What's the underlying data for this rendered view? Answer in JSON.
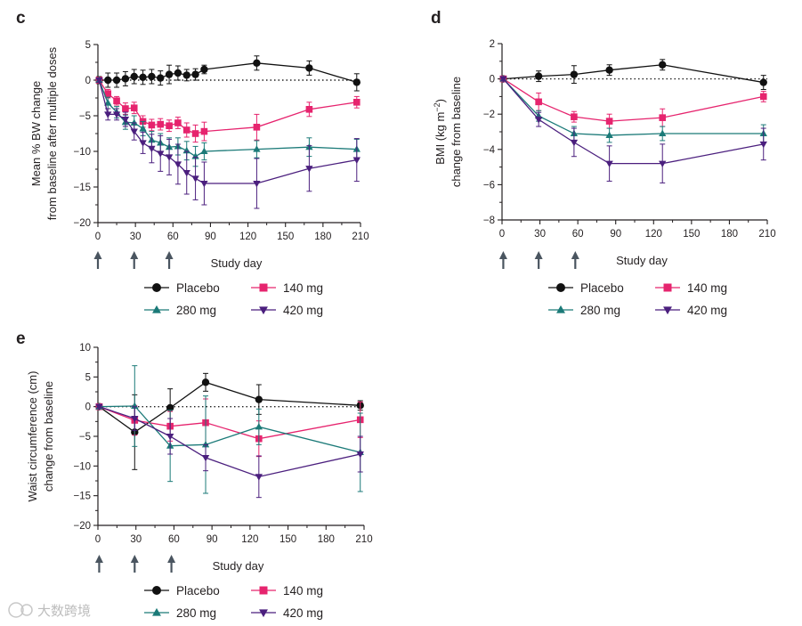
{
  "colors": {
    "placebo": "#111111",
    "mg140": "#e6246e",
    "mg280": "#1b7a78",
    "mg420": "#4b1f7e",
    "axis": "#231f20",
    "arrow": "#4a5560"
  },
  "legend": {
    "placebo": "Placebo",
    "mg140": "140 mg",
    "mg280": "280 mg",
    "mg420": "420 mg"
  },
  "watermark": "大数跨境",
  "chart_data": [
    {
      "panel": "c",
      "type": "line",
      "title": "",
      "xlabel": "Study day",
      "ylabel": "Mean % BW change\nfrom baseline after multiple doses",
      "xlim": [
        0,
        210
      ],
      "ylim": [
        -20,
        5
      ],
      "xticks": [
        "0",
        "30",
        "60",
        "90",
        "120",
        "150",
        "180",
        "210"
      ],
      "yticks": [
        "5",
        "0",
        "−5",
        "−10",
        "−15",
        "−20"
      ],
      "dosing_days": [
        0,
        29,
        57
      ],
      "series": [
        {
          "name": "Placebo",
          "x": [
            1,
            8,
            15,
            22,
            29,
            36,
            43,
            50,
            57,
            64,
            71,
            78,
            85,
            127,
            169,
            207
          ],
          "y": [
            0,
            0,
            0,
            0.2,
            0.5,
            0.4,
            0.5,
            0.3,
            0.8,
            1.0,
            0.7,
            0.8,
            1.5,
            2.4,
            1.7,
            -0.3
          ],
          "err": [
            0.5,
            1.0,
            1.0,
            1.0,
            1.0,
            1.0,
            1.0,
            1.0,
            1.3,
            1.0,
            0.8,
            0.8,
            0.6,
            1.0,
            1.0,
            1.2
          ]
        },
        {
          "name": "140 mg",
          "x": [
            1,
            8,
            15,
            22,
            29,
            36,
            43,
            50,
            57,
            64,
            71,
            78,
            85,
            127,
            169,
            207
          ],
          "y": [
            0,
            -1.9,
            -2.9,
            -4.0,
            -3.9,
            -5.8,
            -6.3,
            -6.2,
            -6.4,
            -6.0,
            -7.0,
            -7.5,
            -7.2,
            -6.6,
            -4.1,
            -3.1
          ],
          "err": [
            0.3,
            0.6,
            0.6,
            0.8,
            0.8,
            0.8,
            0.8,
            0.8,
            0.8,
            0.8,
            1.0,
            1.2,
            1.3,
            1.8,
            1.0,
            0.8
          ]
        },
        {
          "name": "280 mg",
          "x": [
            1,
            8,
            15,
            22,
            29,
            36,
            43,
            50,
            57,
            64,
            71,
            78,
            85,
            127,
            169,
            207
          ],
          "y": [
            0,
            -3.2,
            -4.5,
            -5.9,
            -6.0,
            -6.8,
            -8.4,
            -8.8,
            -9.4,
            -9.3,
            -9.9,
            -10.7,
            -10.0,
            -9.7,
            -9.4,
            -9.7
          ],
          "err": [
            0.3,
            0.8,
            0.8,
            1.0,
            1.0,
            1.0,
            1.2,
            1.3,
            1.3,
            1.2,
            1.3,
            1.4,
            1.2,
            1.2,
            1.3,
            1.4
          ]
        },
        {
          "name": "420 mg",
          "x": [
            1,
            8,
            15,
            22,
            29,
            36,
            43,
            50,
            57,
            64,
            71,
            78,
            85,
            127,
            169,
            207
          ],
          "y": [
            0,
            -4.8,
            -4.8,
            -5.5,
            -7.2,
            -8.8,
            -9.6,
            -10.3,
            -10.8,
            -11.8,
            -13.0,
            -13.8,
            -14.5,
            -14.5,
            -12.4,
            -11.2
          ],
          "err": [
            0.3,
            0.8,
            0.8,
            1.0,
            1.2,
            1.5,
            2.0,
            2.5,
            2.5,
            2.8,
            3.0,
            3.0,
            3.0,
            3.5,
            3.2,
            3.0
          ]
        }
      ]
    },
    {
      "panel": "d",
      "type": "line",
      "title": "",
      "xlabel": "Study day",
      "ylabel": "BMI (kg m⁻²)\nchange from baseline",
      "xlim": [
        0,
        210
      ],
      "ylim": [
        -8,
        2
      ],
      "xticks": [
        "0",
        "30",
        "60",
        "90",
        "120",
        "150",
        "180",
        "210"
      ],
      "yticks": [
        "2",
        "0",
        "−2",
        "−4",
        "−6",
        "−8"
      ],
      "dosing_days": [
        1,
        29,
        58
      ],
      "series": [
        {
          "name": "Placebo",
          "x": [
            1,
            29,
            57,
            85,
            127,
            207
          ],
          "y": [
            0,
            0.15,
            0.25,
            0.5,
            0.8,
            -0.2
          ],
          "err": [
            0.1,
            0.3,
            0.5,
            0.3,
            0.3,
            0.4
          ]
        },
        {
          "name": "140 mg",
          "x": [
            1,
            29,
            57,
            85,
            127,
            207
          ],
          "y": [
            0,
            -1.3,
            -2.15,
            -2.4,
            -2.2,
            -1.0
          ],
          "err": [
            0.1,
            0.5,
            0.3,
            0.4,
            0.5,
            0.3
          ]
        },
        {
          "name": "280 mg",
          "x": [
            1,
            29,
            57,
            85,
            127,
            207
          ],
          "y": [
            0,
            -2.1,
            -3.1,
            -3.2,
            -3.1,
            -3.1
          ],
          "err": [
            0.1,
            0.3,
            0.4,
            0.4,
            0.4,
            0.5
          ]
        },
        {
          "name": "420 mg",
          "x": [
            1,
            29,
            57,
            85,
            127,
            207
          ],
          "y": [
            0,
            -2.3,
            -3.6,
            -4.8,
            -4.8,
            -3.7
          ],
          "err": [
            0.1,
            0.4,
            0.8,
            1.0,
            1.1,
            0.9
          ]
        }
      ]
    },
    {
      "panel": "e",
      "type": "line",
      "title": "",
      "xlabel": "Study day",
      "ylabel": "Waist circumference (cm)\nchange from baseline",
      "xlim": [
        0,
        210
      ],
      "ylim": [
        -20,
        10
      ],
      "xticks": [
        "0",
        "30",
        "60",
        "90",
        "120",
        "150",
        "180",
        "210"
      ],
      "yticks": [
        "10",
        "5",
        "0",
        "−5",
        "−10",
        "−15",
        "−20"
      ],
      "dosing_days": [
        1,
        29,
        58
      ],
      "series": [
        {
          "name": "Placebo",
          "x": [
            1,
            29,
            57,
            85,
            127,
            207
          ],
          "y": [
            0,
            -4.3,
            -0.2,
            4.1,
            1.2,
            0.2
          ],
          "err": [
            0.2,
            6.3,
            3.2,
            1.5,
            2.5,
            0.8
          ]
        },
        {
          "name": "140 mg",
          "x": [
            1,
            29,
            57,
            85,
            127,
            207
          ],
          "y": [
            0,
            -2.3,
            -3.3,
            -2.7,
            -5.4,
            -2.2
          ],
          "err": [
            0.2,
            2.5,
            2.5,
            4.0,
            3.0,
            3.0
          ]
        },
        {
          "name": "280 mg",
          "x": [
            1,
            29,
            57,
            85,
            127,
            207
          ],
          "y": [
            0,
            0.1,
            -6.6,
            -6.4,
            -3.4,
            -7.7
          ],
          "err": [
            0.2,
            6.8,
            6.0,
            8.2,
            3.0,
            6.6
          ]
        },
        {
          "name": "420 mg",
          "x": [
            1,
            29,
            57,
            85,
            127,
            207
          ],
          "y": [
            0,
            -2.0,
            -5.0,
            -8.6,
            -11.8,
            -8.0
          ],
          "err": [
            0.2,
            2.0,
            3.0,
            2.2,
            3.5,
            3.0
          ]
        }
      ]
    }
  ]
}
